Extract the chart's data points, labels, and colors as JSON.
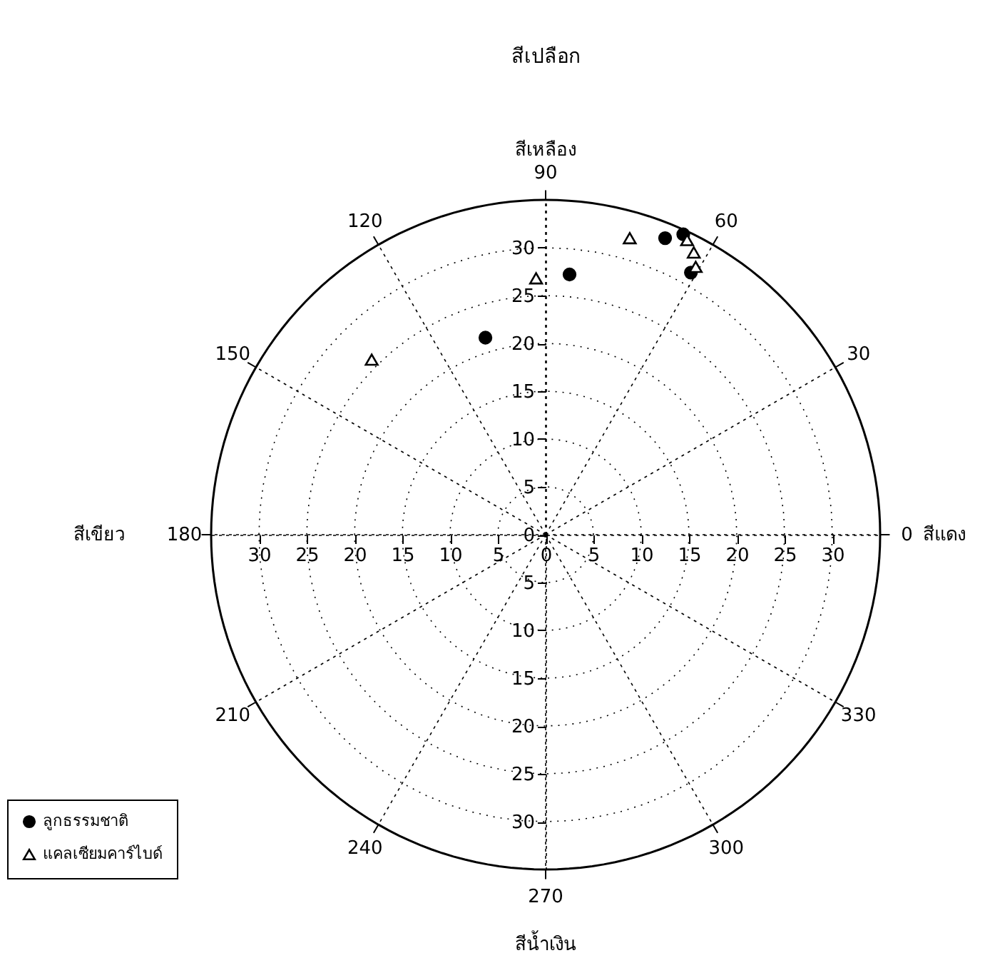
{
  "chart_data": {
    "type": "scatter",
    "title": "สีเปลือก",
    "xlim": [
      -35,
      35
    ],
    "ylim": [
      -35,
      35
    ],
    "xticks": [
      {
        "value": -30,
        "label": "30"
      },
      {
        "value": -25,
        "label": "25"
      },
      {
        "value": -20,
        "label": "20"
      },
      {
        "value": -15,
        "label": "15"
      },
      {
        "value": -10,
        "label": "10"
      },
      {
        "value": -5,
        "label": "5"
      },
      0,
      5,
      10,
      15,
      20,
      25,
      30
    ],
    "yticks": [
      {
        "value": -30,
        "label": "30"
      },
      {
        "value": -25,
        "label": "25"
      },
      {
        "value": -20,
        "label": "20"
      },
      {
        "value": -15,
        "label": "15"
      },
      {
        "value": -10,
        "label": "10"
      },
      {
        "value": -5,
        "label": "5"
      },
      0,
      5,
      10,
      15,
      20,
      25,
      30
    ],
    "grid": true,
    "legend": "bottom left",
    "series": [
      {
        "name": "ลูกธรรมชาติ",
        "color": "#000000",
        "marker": "circle",
        "x": [
          12.5,
          2.5,
          -6.3,
          15.2,
          14.4
        ],
        "values": [
          31.0,
          27.2,
          20.6,
          27.4,
          31.4
        ]
      },
      {
        "name": "แคลเซียมคาร์ไบด์",
        "color": "#ffffff",
        "marker": "triangle",
        "x": [
          8.8,
          -1.0,
          -18.2,
          14.8,
          15.5,
          15.7
        ],
        "values": [
          31.0,
          26.8,
          18.3,
          30.8,
          29.5,
          28.0
        ]
      }
    ],
    "annotations": [
      "0",
      "30",
      "60",
      "90",
      "120",
      "150",
      "180",
      "210",
      "240",
      "270",
      "300",
      "330",
      "สีแดง",
      "สีเหลือง",
      "สีเขียว",
      "สีน้ำเงิน"
    ]
  }
}
